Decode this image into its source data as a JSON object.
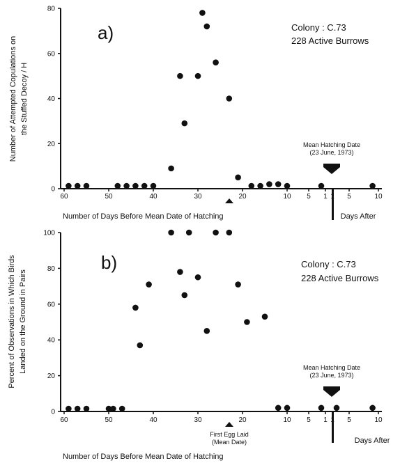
{
  "chart_data": [
    {
      "type": "scatter",
      "panel_label": "a)",
      "ylabel_line1": "Number of Attempted Copulations on",
      "ylabel_line2": "the Stuffed Decoy / H",
      "xlabel": "Number of Days Before Mean Date of Hatching",
      "xlabel_after": "Days After",
      "colony": "Colony : C.73",
      "burrows": "228 Active Burrows",
      "hatch_label_line1": "Mean Hatching Date",
      "hatch_label_line2": "(23 June, 1973)",
      "ylim": [
        0,
        80
      ],
      "yticks": [
        "0",
        "20",
        "40",
        "60",
        "80"
      ],
      "xticks_before": [
        "60",
        "50",
        "40",
        "30",
        "20",
        "10",
        "5",
        "1"
      ],
      "xticks_after": [
        "1",
        "5",
        "10"
      ],
      "points": [
        {
          "x": -59,
          "y": 1
        },
        {
          "x": -57,
          "y": 1
        },
        {
          "x": -55,
          "y": 1
        },
        {
          "x": -48,
          "y": 1
        },
        {
          "x": -46,
          "y": 1
        },
        {
          "x": -44,
          "y": 1
        },
        {
          "x": -42,
          "y": 1
        },
        {
          "x": -40,
          "y": 1
        },
        {
          "x": -36,
          "y": 9
        },
        {
          "x": -34,
          "y": 50
        },
        {
          "x": -33,
          "y": 29
        },
        {
          "x": -30,
          "y": 50
        },
        {
          "x": -29,
          "y": 78
        },
        {
          "x": -28,
          "y": 72
        },
        {
          "x": -26,
          "y": 56
        },
        {
          "x": -23,
          "y": 40
        },
        {
          "x": -21,
          "y": 5
        },
        {
          "x": -18,
          "y": 1
        },
        {
          "x": -16,
          "y": 1
        },
        {
          "x": -14,
          "y": 2
        },
        {
          "x": -12,
          "y": 2
        },
        {
          "x": -10,
          "y": 1
        },
        {
          "x": -2,
          "y": 1
        },
        {
          "x": 9,
          "y": 1
        }
      ]
    },
    {
      "type": "scatter",
      "panel_label": "b)",
      "ylabel_line1": "Percent of Observations in Which Birds",
      "ylabel_line2": "Landed on the Ground in Pairs",
      "xlabel": "Number of Days Before Mean Date of Hatching",
      "xlabel_after": "Days After",
      "colony": "Colony : C.73",
      "burrows": "228 Active Burrows",
      "hatch_label_line1": "Mean Hatching Date",
      "hatch_label_line2": "(23 June, 1973)",
      "egg_label_line1": "First Egg Laid",
      "egg_label_line2": "(Mean Date)",
      "ylim": [
        0,
        100
      ],
      "yticks": [
        "0",
        "20",
        "40",
        "60",
        "80",
        "100"
      ],
      "xticks_before": [
        "60",
        "50",
        "40",
        "30",
        "20",
        "10",
        "5",
        "1"
      ],
      "xticks_after": [
        "1",
        "5",
        "10"
      ],
      "points": [
        {
          "x": -59,
          "y": 1
        },
        {
          "x": -57,
          "y": 1
        },
        {
          "x": -55,
          "y": 1
        },
        {
          "x": -50,
          "y": 1
        },
        {
          "x": -49,
          "y": 1
        },
        {
          "x": -47,
          "y": 1
        },
        {
          "x": -44,
          "y": 58
        },
        {
          "x": -43,
          "y": 37
        },
        {
          "x": -41,
          "y": 71
        },
        {
          "x": -36,
          "y": 100
        },
        {
          "x": -34,
          "y": 78
        },
        {
          "x": -33,
          "y": 65
        },
        {
          "x": -32,
          "y": 100
        },
        {
          "x": -30,
          "y": 75
        },
        {
          "x": -28,
          "y": 45
        },
        {
          "x": -26,
          "y": 100
        },
        {
          "x": -23,
          "y": 100
        },
        {
          "x": -21,
          "y": 71
        },
        {
          "x": -19,
          "y": 50
        },
        {
          "x": -15,
          "y": 53
        },
        {
          "x": -12,
          "y": 2
        },
        {
          "x": -10,
          "y": 2
        },
        {
          "x": -2,
          "y": 2
        },
        {
          "x": 2,
          "y": 2
        },
        {
          "x": 9,
          "y": 2
        }
      ]
    }
  ]
}
